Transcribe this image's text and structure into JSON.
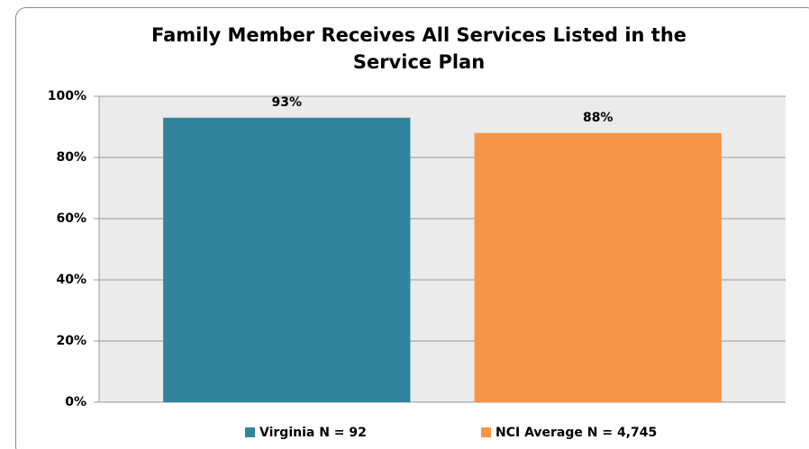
{
  "chart_data": {
    "type": "bar",
    "title": "Family Member Receives All Services Listed in the Service Plan",
    "categories": [
      null
    ],
    "series": [
      {
        "name": "Virginia N = 92",
        "color": "#31849b",
        "values": [
          93
        ],
        "value_labels": [
          "93%"
        ]
      },
      {
        "name": "NCI Average N = 4,745",
        "color": "#f79646",
        "values": [
          88
        ],
        "value_labels": [
          "88%"
        ]
      }
    ],
    "ylim": [
      0,
      100
    ],
    "yticks": [
      {
        "value": 0,
        "label": "0%"
      },
      {
        "value": 20,
        "label": "20%"
      },
      {
        "value": 40,
        "label": "40%"
      },
      {
        "value": 60,
        "label": "60%"
      },
      {
        "value": 80,
        "label": "80%"
      },
      {
        "value": 100,
        "label": "100%"
      }
    ],
    "grid": true,
    "legend": "bottom"
  }
}
